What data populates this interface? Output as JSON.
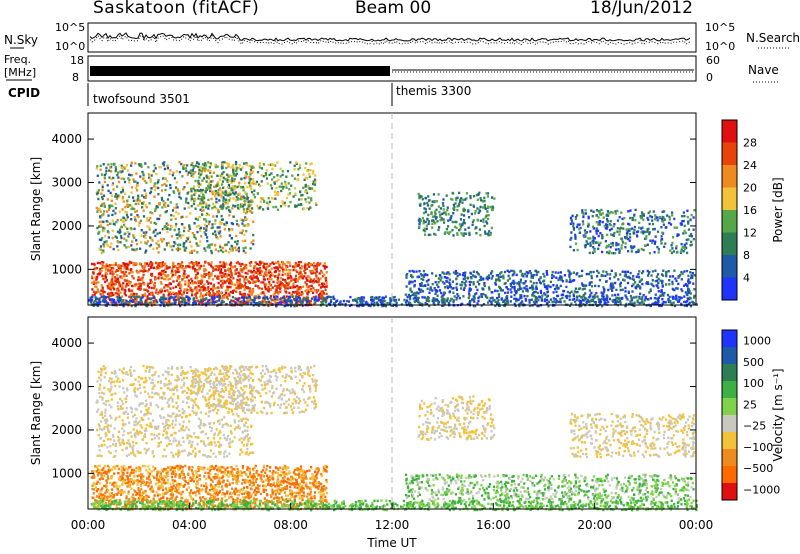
{
  "header": {
    "site": "Saskatoon (fitACF)",
    "beam": "Beam 00",
    "date": "18/Jun/2012"
  },
  "strip": {
    "nsky_label": "N.Sky",
    "nsearch_label": "N.Search",
    "noise_left_ticks": [
      "10^5",
      "10^0"
    ],
    "noise_right_ticks": [
      "10^5",
      "10^0"
    ],
    "freq_label_1": "Freq.",
    "freq_label_2": "[MHz]",
    "freq_ticks": [
      "18",
      "8"
    ],
    "nave_label": "Nave",
    "nave_ticks": [
      "60",
      "0"
    ],
    "cpid_label": "CPID",
    "cpid_segments": [
      "twofsound 3501",
      "themis 3300"
    ]
  },
  "chart_data": [
    {
      "type": "heatmap",
      "name": "power",
      "ylabel": "Slant Range [km]",
      "yticks": [
        "1000",
        "2000",
        "3000",
        "4000"
      ],
      "ylim": [
        180,
        4600
      ],
      "xlim": [
        0,
        24
      ],
      "colorbar_label": "Power [dB]",
      "colorbar_ticks": [
        "4",
        "8",
        "12",
        "16",
        "20",
        "24",
        "28"
      ],
      "colors": [
        "#1f33ff",
        "#1e5aa6",
        "#2e7d55",
        "#54a848",
        "#f2c23a",
        "#ef8a1e",
        "#e8440a",
        "#e01010"
      ]
    },
    {
      "type": "heatmap",
      "name": "velocity",
      "ylabel": "Slant Range [km]",
      "yticks": [
        "1000",
        "2000",
        "3000",
        "4000"
      ],
      "ylim": [
        180,
        4600
      ],
      "xlim": [
        0,
        24
      ],
      "xticks": [
        "00:00",
        "04:00",
        "08:00",
        "12:00",
        "16:00",
        "20:00",
        "00:00"
      ],
      "xlabel": "Time UT",
      "colorbar_label": "Velocity [m s⁻¹]",
      "colorbar_ticks": [
        "1000",
        "500",
        "100",
        "25",
        "−25",
        "−100",
        "−500",
        "−1000"
      ],
      "colors": [
        "#1f33ff",
        "#1f5aa8",
        "#2e7d55",
        "#3cb043",
        "#7fd24a",
        "#c8c8c0",
        "#f2c23a",
        "#ef8a1e",
        "#ff6a00",
        "#e01010"
      ]
    }
  ]
}
